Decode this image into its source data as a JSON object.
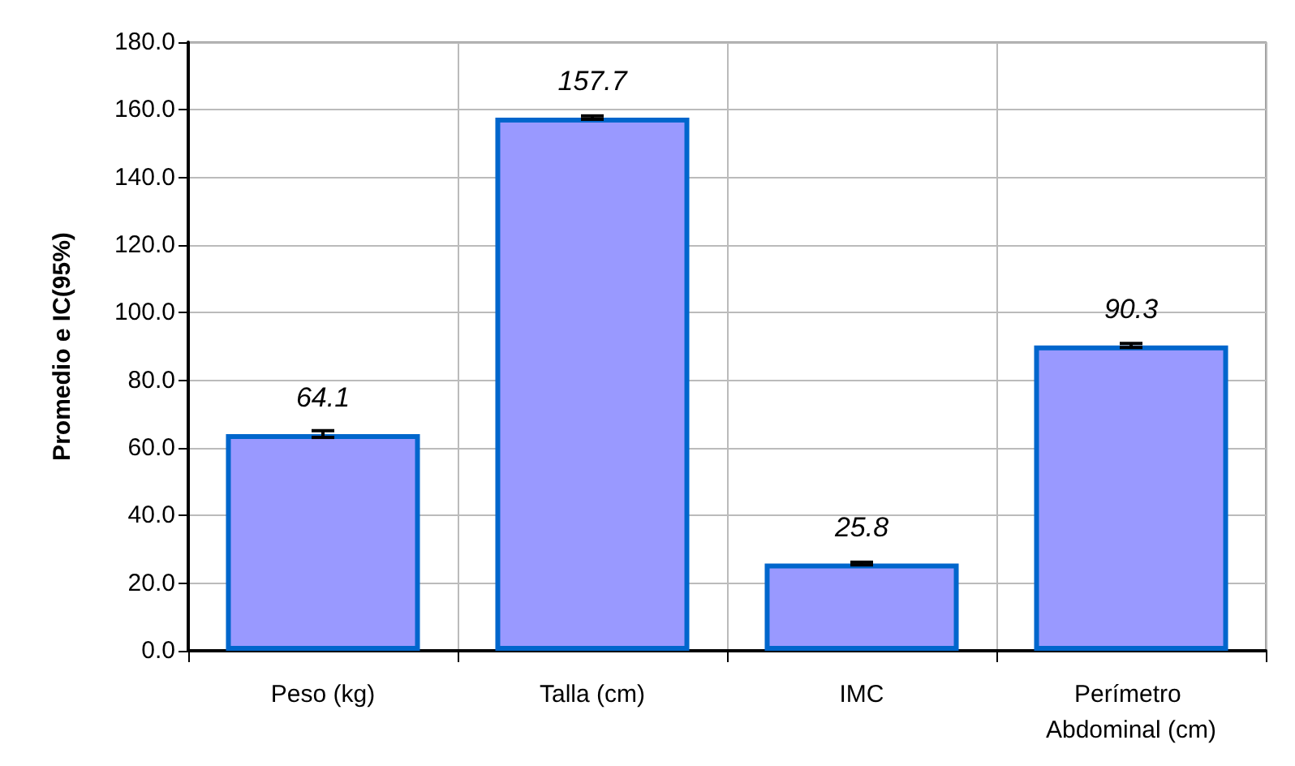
{
  "chart_data": {
    "type": "bar",
    "ylabel": "Promedio e IC(95%)",
    "categories": [
      "Peso (kg)",
      "Talla (cm)",
      "IMC",
      "Perímetro Abdominal (cm)"
    ],
    "series": [
      {
        "color": "#9999ff",
        "values": [
          64.1,
          157.7,
          25.8,
          90.3
        ],
        "errors": [
          1.0,
          0.5,
          0.4,
          0.6
        ]
      }
    ],
    "ylim": [
      0,
      180
    ],
    "yticks": [
      {
        "value": 0,
        "label": "0.0"
      },
      {
        "value": 20,
        "label": "20.0"
      },
      {
        "value": 40,
        "label": "40.0"
      },
      {
        "value": 60,
        "label": "60.0"
      },
      {
        "value": 80,
        "label": "80.0"
      },
      {
        "value": 100,
        "label": "100.0"
      },
      {
        "value": 120,
        "label": "120.0"
      },
      {
        "value": 140,
        "label": "140.0"
      },
      {
        "value": 160,
        "label": "160.0"
      },
      {
        "value": 180,
        "label": "180.0"
      }
    ],
    "grid": true,
    "data_labels": true
  }
}
